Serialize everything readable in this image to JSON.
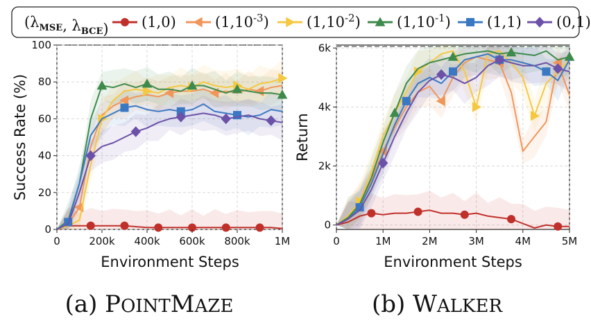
{
  "legend": {
    "title": "(λ_MSE, λ_BCE)",
    "entries": [
      {
        "label": "(1,0)",
        "color": "#c0302b",
        "marker": "circle"
      },
      {
        "label": "(1,10^-3)",
        "color": "#f0965a",
        "marker": "triangle-left"
      },
      {
        "label": "(1,10^-2)",
        "color": "#f5c842",
        "marker": "triangle-right"
      },
      {
        "label": "(1,10^-1)",
        "color": "#3d8a4a",
        "marker": "triangle-up"
      },
      {
        "label": "(1,1)",
        "color": "#3b78c3",
        "marker": "square"
      },
      {
        "label": "(0,1)",
        "color": "#6c51a8",
        "marker": "diamond"
      }
    ]
  },
  "chart_data": [
    {
      "type": "line",
      "caption": "(a) PointMaze",
      "xlabel": "Environment Steps",
      "ylabel": "Success Rate (%)",
      "xlim": [
        0,
        1000000
      ],
      "ylim": [
        0,
        100
      ],
      "xticks": [
        0,
        200000,
        400000,
        600000,
        800000,
        1000000
      ],
      "xtick_labels": [
        "0",
        "200k",
        "400k",
        "600k",
        "800k",
        "1M"
      ],
      "yticks": [
        0,
        20,
        40,
        60,
        80,
        100
      ],
      "ytick_labels": [
        "0",
        "20",
        "40",
        "60",
        "80",
        "100"
      ],
      "grid": true,
      "reference_line": 100,
      "x": [
        0,
        50000,
        100000,
        150000,
        200000,
        250000,
        300000,
        350000,
        400000,
        450000,
        500000,
        550000,
        600000,
        650000,
        700000,
        750000,
        800000,
        850000,
        900000,
        950000,
        1000000
      ],
      "series": [
        {
          "name": "(1,0)",
          "values": [
            0,
            2,
            2,
            2,
            2,
            2,
            2,
            1.5,
            1,
            1,
            1,
            1,
            1,
            1,
            1,
            1,
            1,
            1,
            1,
            1,
            0.5
          ]
        },
        {
          "name": "(1,10^-3)",
          "values": [
            0,
            3,
            12,
            45,
            62,
            67,
            70,
            72,
            73,
            72,
            74,
            75,
            75,
            76,
            74,
            75,
            74,
            76,
            75,
            77,
            78
          ]
        },
        {
          "name": "(1,10^-2)",
          "values": [
            0,
            2,
            5,
            35,
            60,
            70,
            75,
            76,
            75,
            74,
            77,
            78,
            77,
            80,
            78,
            77,
            78,
            76,
            79,
            80,
            82
          ]
        },
        {
          "name": "(1,10^-1)",
          "values": [
            0,
            5,
            25,
            60,
            78,
            77,
            79,
            77,
            79,
            76,
            76,
            75,
            78,
            78,
            76,
            74,
            76,
            75,
            74,
            74,
            73
          ]
        },
        {
          "name": "(1,1)",
          "values": [
            0,
            4,
            25,
            51,
            60,
            63,
            66,
            67,
            65,
            64,
            65,
            64,
            65,
            68,
            64,
            63,
            62,
            61,
            62,
            65,
            64
          ]
        },
        {
          "name": "(0,1)",
          "values": [
            0,
            3,
            20,
            40,
            45,
            47,
            50,
            53,
            55,
            58,
            60,
            61,
            62,
            63,
            62,
            60,
            61,
            62,
            60,
            59,
            58
          ]
        }
      ]
    },
    {
      "type": "line",
      "caption": "(b) Walker",
      "xlabel": "Environment Steps",
      "ylabel": "Return",
      "xlim": [
        0,
        5000000
      ],
      "ylim": [
        -150,
        6100
      ],
      "xticks": [
        0,
        1000000,
        2000000,
        3000000,
        4000000,
        5000000
      ],
      "xtick_labels": [
        "0",
        "1M",
        "2M",
        "3M",
        "4M",
        "5M"
      ],
      "yticks": [
        0,
        2000,
        4000,
        6000
      ],
      "ytick_labels": [
        "0",
        "2k",
        "4k",
        "6k"
      ],
      "grid": true,
      "reference_line": 6050,
      "x": [
        0,
        250000,
        500000,
        750000,
        1000000,
        1250000,
        1500000,
        1750000,
        2000000,
        2250000,
        2500000,
        2750000,
        3000000,
        3250000,
        3500000,
        3750000,
        4000000,
        4250000,
        4500000,
        4750000,
        5000000
      ],
      "series": [
        {
          "name": "(1,0)",
          "values": [
            0,
            100,
            300,
            400,
            350,
            400,
            400,
            450,
            500,
            400,
            400,
            350,
            400,
            300,
            250,
            200,
            50,
            -100,
            0,
            -50,
            -50
          ]
        },
        {
          "name": "(1,10^-3)",
          "values": [
            0,
            300,
            700,
            1500,
            2500,
            3300,
            4000,
            4500,
            4700,
            4200,
            5000,
            5500,
            5700,
            5600,
            5500,
            4500,
            2500,
            3000,
            3500,
            5500,
            4400
          ]
        },
        {
          "name": "(1,10^-2)",
          "values": [
            0,
            300,
            800,
            1800,
            3000,
            3800,
            4500,
            5200,
            5500,
            5800,
            5900,
            5200,
            4000,
            5800,
            5900,
            5500,
            5000,
            3700,
            4800,
            5200,
            5600
          ]
        },
        {
          "name": "(1,10^-1)",
          "values": [
            0,
            250,
            700,
            1600,
            2800,
            3800,
            4800,
            5300,
            5500,
            5600,
            5700,
            5800,
            5850,
            5900,
            5800,
            5850,
            5800,
            5750,
            5900,
            5600,
            5700
          ]
        },
        {
          "name": "(1,1)",
          "values": [
            0,
            200,
            600,
            1400,
            2400,
            3400,
            4200,
            4800,
            5000,
            4800,
            5200,
            5600,
            5700,
            5800,
            5600,
            5600,
            5500,
            5400,
            5200,
            4900,
            5600
          ]
        },
        {
          "name": "(0,1)",
          "values": [
            0,
            200,
            500,
            1200,
            2100,
            3000,
            3800,
            4500,
            4900,
            5100,
            5000,
            4800,
            5000,
            5400,
            5600,
            5500,
            5400,
            5400,
            5500,
            5300,
            5200
          ]
        }
      ]
    }
  ]
}
